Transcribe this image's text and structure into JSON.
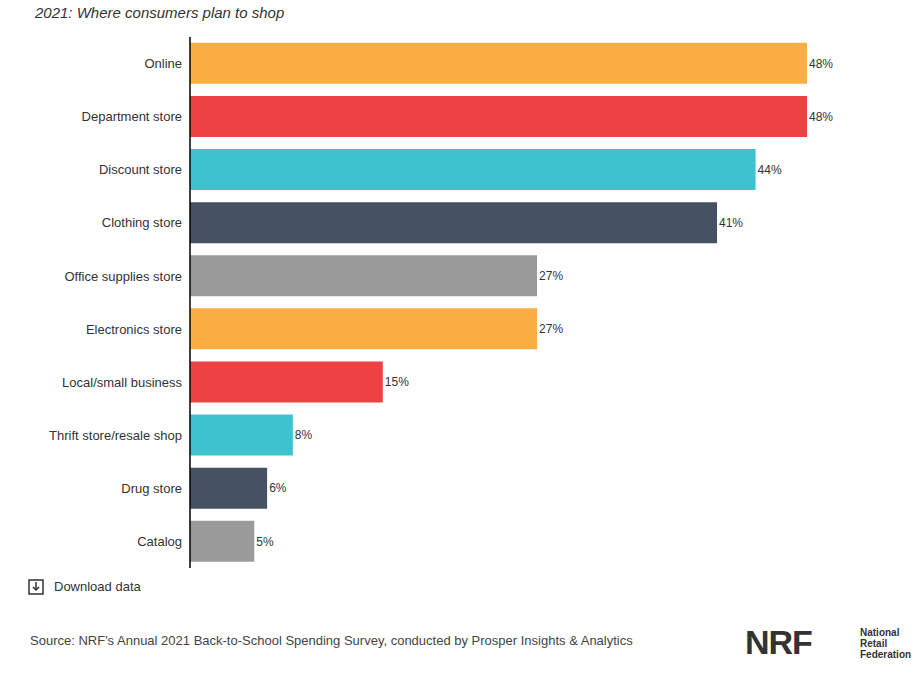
{
  "chart_data": {
    "type": "bar",
    "title": "2021: Where consumers plan to shop",
    "orientation": "horizontal",
    "categories": [
      "Online",
      "Department store",
      "Discount store",
      "Clothing store",
      "Office supplies store",
      "Electronics store",
      "Local/small business",
      "Thrift store/resale shop",
      "Drug store",
      "Catalog"
    ],
    "values": [
      48,
      48,
      44,
      41,
      27,
      27,
      15,
      8,
      6,
      5
    ],
    "value_labels": [
      "48%",
      "48%",
      "44%",
      "41%",
      "27%",
      "27%",
      "15%",
      "8%",
      "6%",
      "5%"
    ],
    "colors": [
      "#fbae44",
      "#ee4141",
      "#3cc3cf",
      "#465263",
      "#9a9a9a",
      "#fbae44",
      "#ee4141",
      "#3cc3cf",
      "#465263",
      "#9a9a9a"
    ],
    "xlim": [
      0,
      48
    ],
    "data_labels": true,
    "tick_labels": "y",
    "grid": false,
    "download_label": "Download data",
    "source": "Source: NRF's Annual 2021 Back-to-School Spending Survey, conducted by Prosper Insights & Analytics",
    "logo": {
      "text": "NRF",
      "lines": [
        "National",
        "Retail",
        "Federation"
      ]
    }
  }
}
